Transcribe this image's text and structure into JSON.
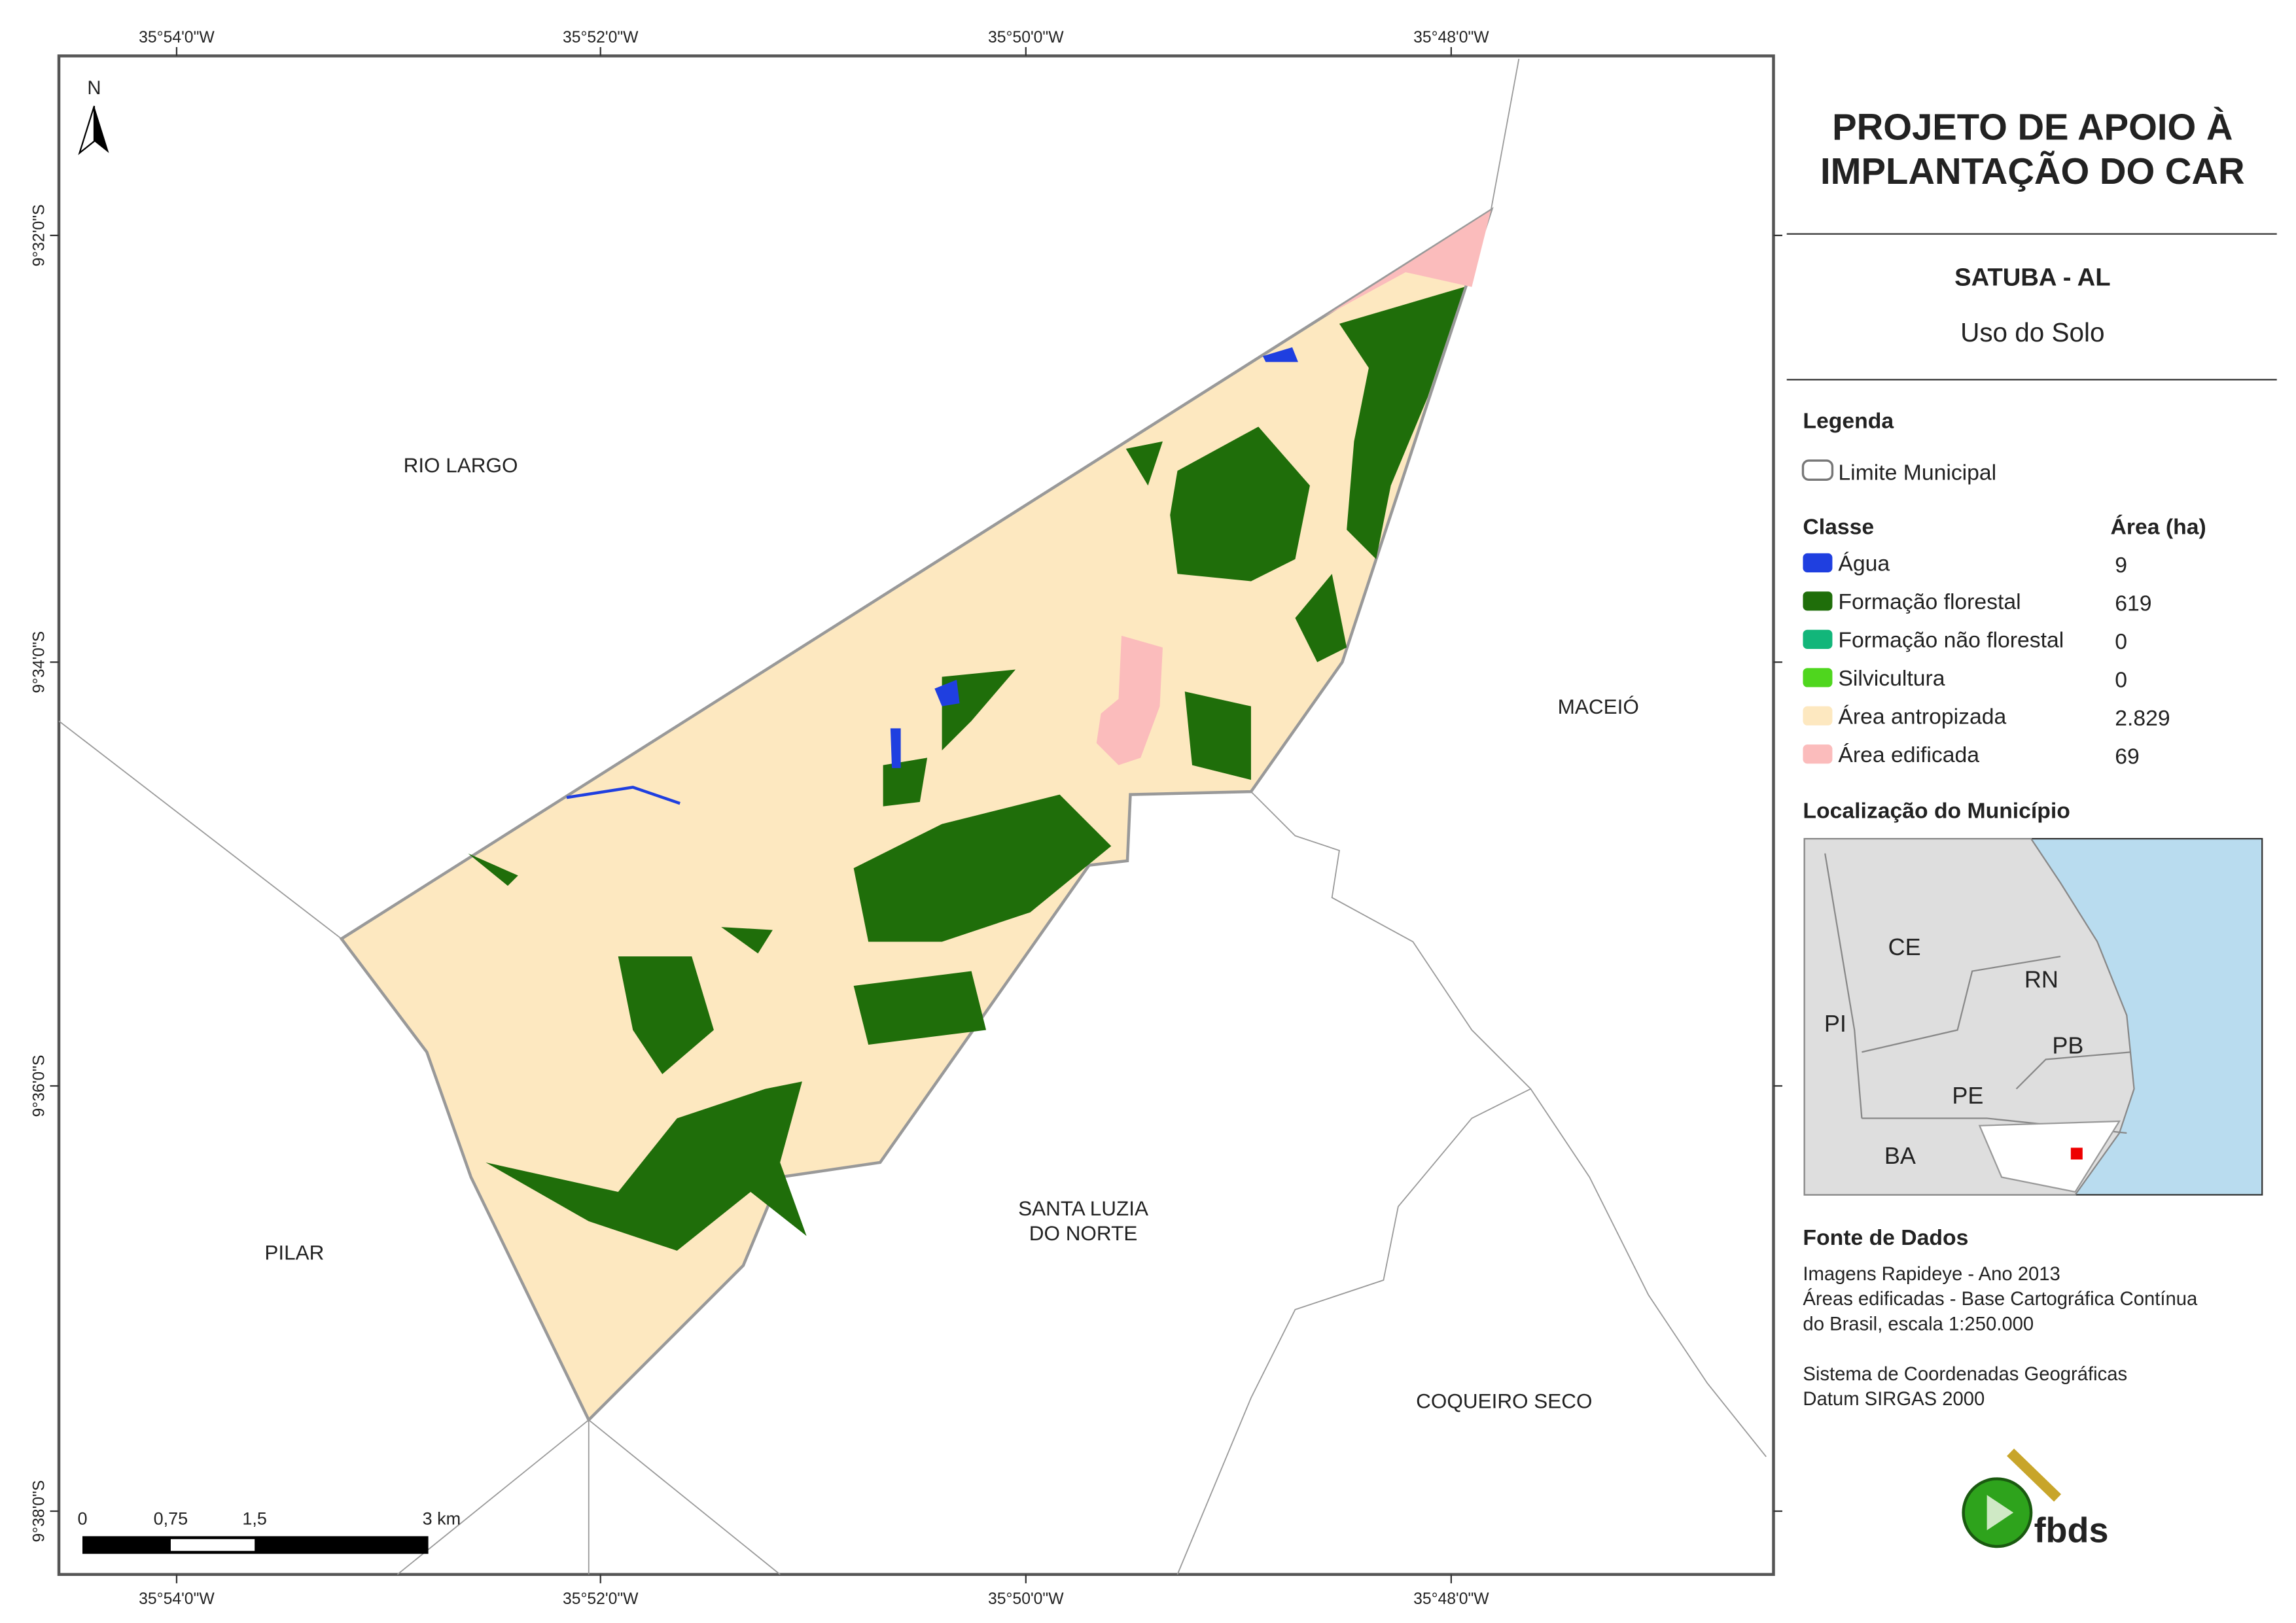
{
  "header": {
    "title_lines": [
      "PROJETO DE APOIO À",
      "IMPLANTAÇÃO DO CAR"
    ],
    "municipality": "SATUBA - AL",
    "subtitle": "Uso do Solo"
  },
  "legend": {
    "title": "Legenda",
    "boundary": "Limite Municipal",
    "class_header": "Classe",
    "area_header": "Área (ha)",
    "classes": [
      {
        "name": "Água",
        "color": "#1f3fe0",
        "area": 9
      },
      {
        "name": "Formação florestal",
        "color": "#1f6e0a",
        "area": 619
      },
      {
        "name": "Formação não florestal",
        "color": "#12b67a",
        "area": 0
      },
      {
        "name": "Silvicultura",
        "color": "#4fd61e",
        "area": 0
      },
      {
        "name": "Área antropizada",
        "color": "#fde8c0",
        "area": {
          "value": 2829,
          "label": "2.829"
        }
      },
      {
        "name": "Área edificada",
        "color": "#fbbcbc",
        "area": 69
      }
    ]
  },
  "location": {
    "title": "Localização do Município",
    "states": [
      "CE",
      "RN",
      "PI",
      "PB",
      "PE",
      "BA"
    ]
  },
  "sources": {
    "title": "Fonte de Dados",
    "lines": [
      "Imagens Rapideye - Ano 2013",
      "Áreas edificadas - Base Cartográfica Contínua",
      "do Brasil, escala 1:250.000",
      "Sistema de Coordenadas Geográficas",
      "Datum SIRGAS 2000"
    ]
  },
  "map": {
    "neighbors": [
      "RIO LARGO",
      "MACEIÓ",
      "PILAR",
      "COQUEIRO SECO"
    ],
    "santa_luzia": [
      "SANTA LUZIA",
      "DO NORTE"
    ],
    "north": "N"
  },
  "grid": {
    "longitudes": [
      "35°54'0\"W",
      "35°52'0\"W",
      "35°50'0\"W",
      "35°48'0\"W"
    ],
    "latitudes": [
      "9°32'0\"S",
      "9°34'0\"S",
      "9°36'0\"S",
      "9°38'0\"S"
    ]
  },
  "scale_bar": [
    "0",
    "0,75",
    "1,5",
    "3 km"
  ],
  "logo": "fbds"
}
